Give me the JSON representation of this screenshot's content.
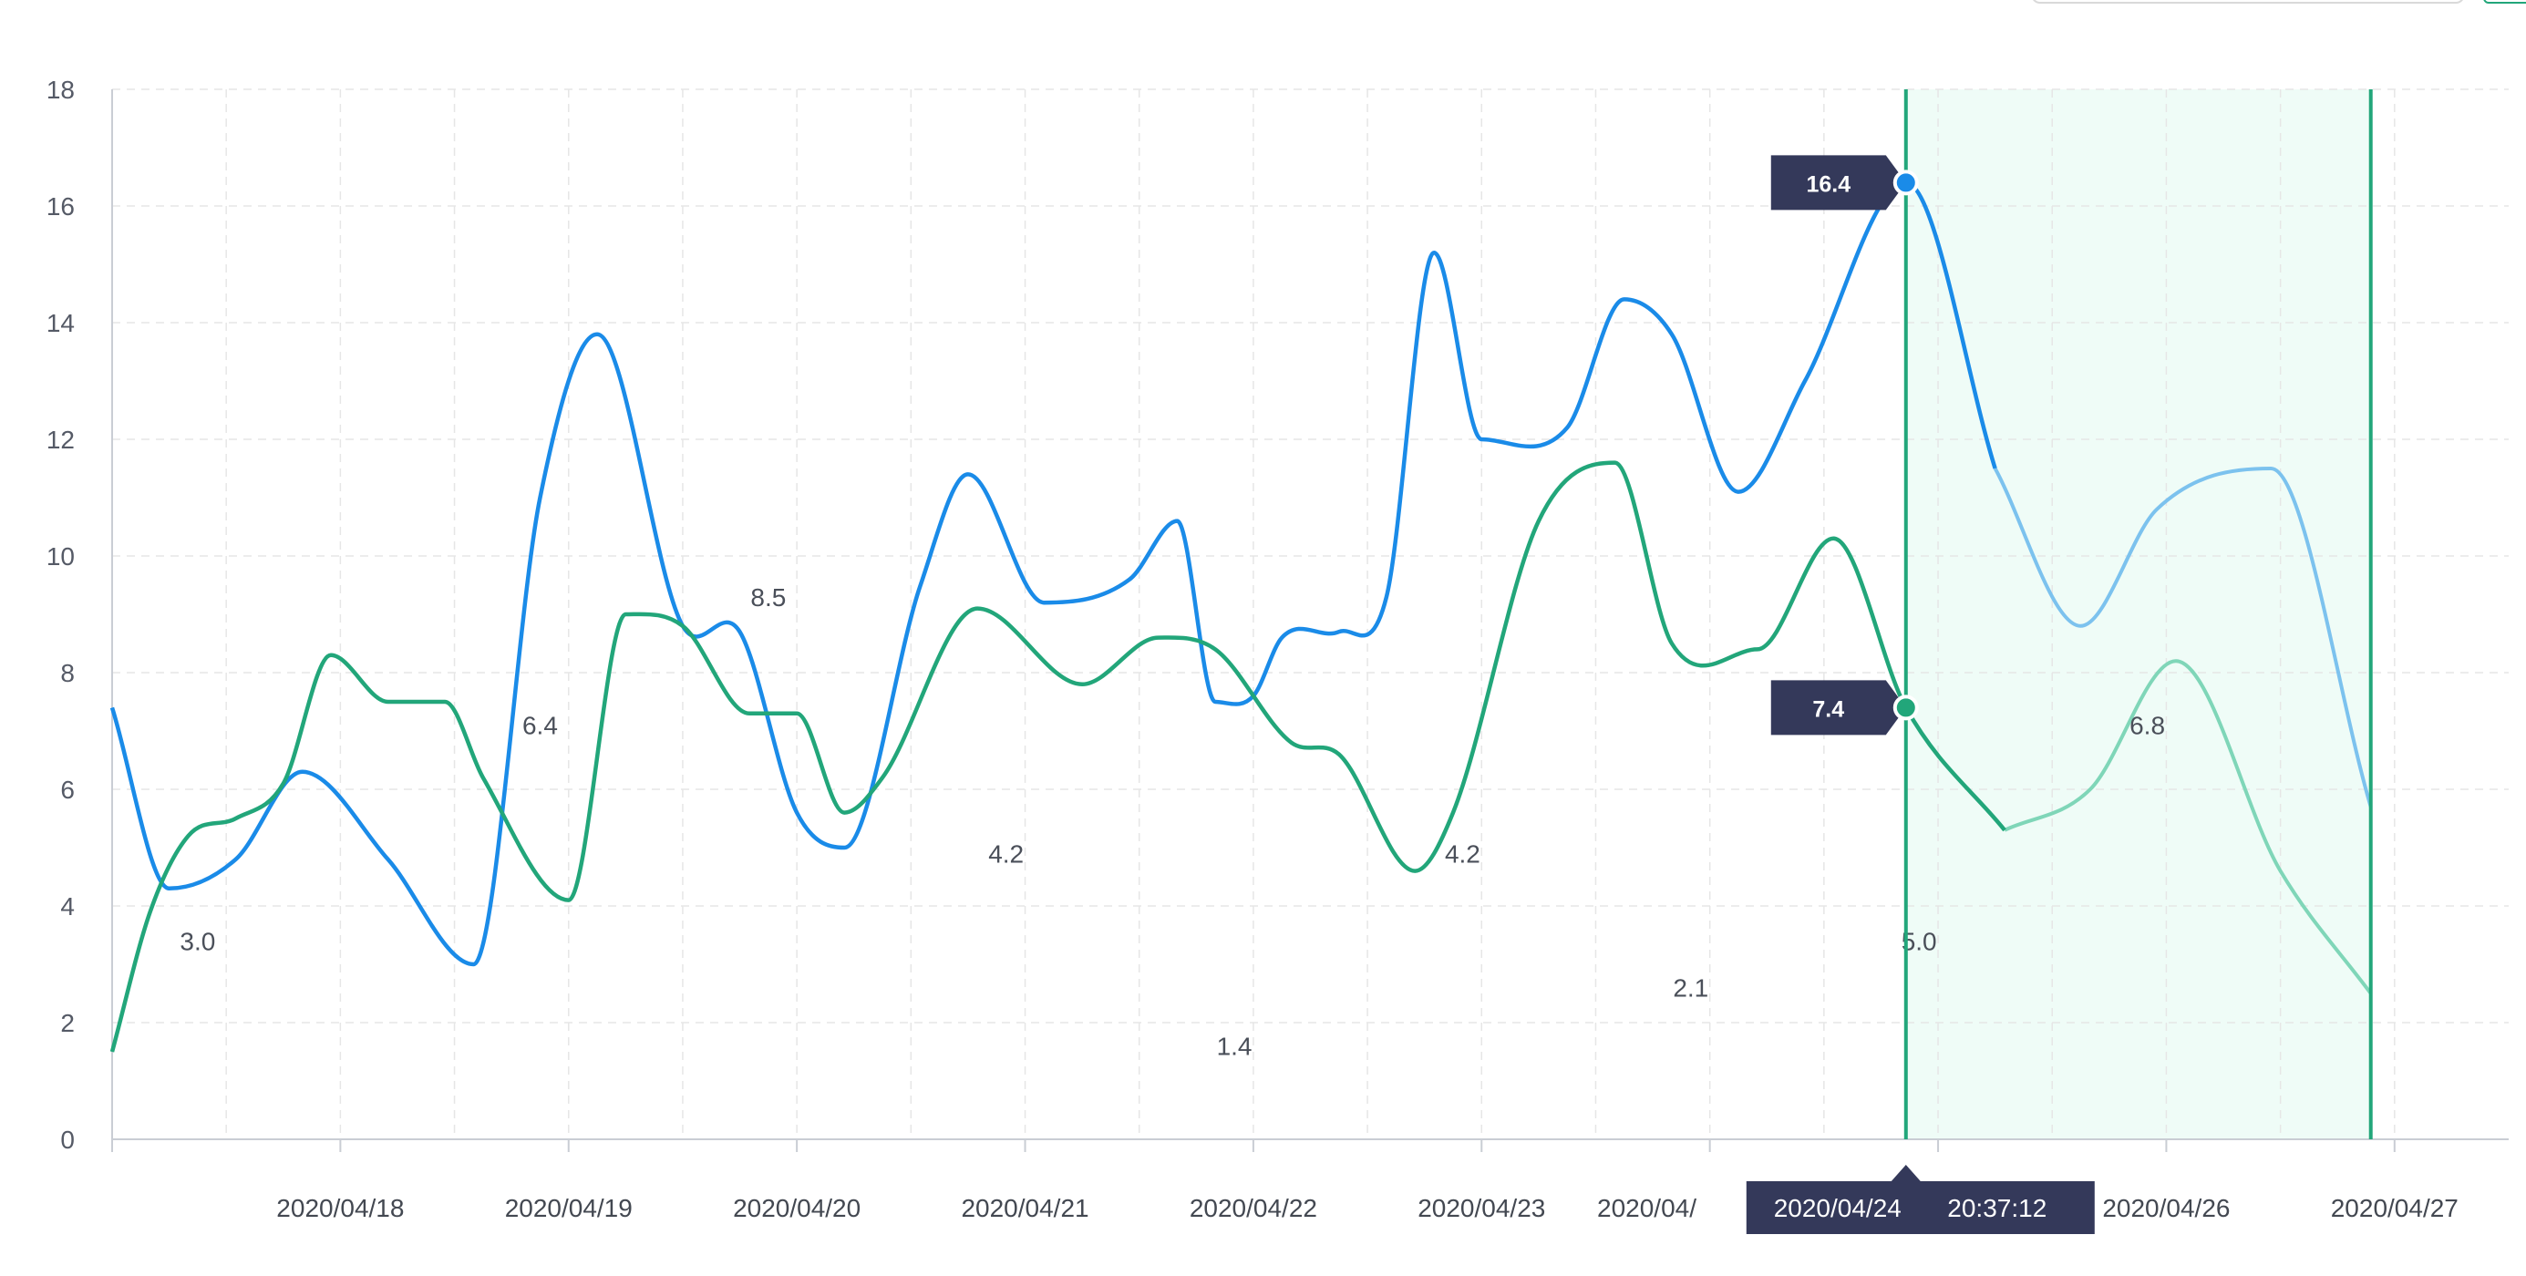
{
  "colors": {
    "series_a": "#1a8be8",
    "series_a_future": "#7cc2ee",
    "series_b": "#22a67a",
    "series_b_future": "#7fd6b8",
    "tooltip_bg": "#34395a",
    "grid": "#e6e6e6",
    "axis": "#c9cdd4",
    "selection_fill": "#effcf7"
  },
  "crosshair": {
    "date_label": "2020/04/24",
    "time_label": "20:37:12",
    "x": "2020/04/24 20:37:12",
    "series_a_value": "16.4",
    "series_b_value": "7.4"
  },
  "chart_data": {
    "type": "line",
    "xlabel": "",
    "ylabel": "",
    "ylim": [
      0,
      18
    ],
    "y_ticks": [
      "0",
      "2",
      "4",
      "6",
      "8",
      "10",
      "12",
      "14",
      "16",
      "18"
    ],
    "x_range": [
      "2020/04/17 00:00",
      "2020/04/27 12:00"
    ],
    "x_ticks": [
      "2020/04/18",
      "2020/04/19",
      "2020/04/20",
      "2020/04/21",
      "2020/04/22",
      "2020/04/23",
      "2020/04/24",
      "2020/04/25",
      "2020/04/26",
      "2020/04/27"
    ],
    "x_tick_labels": [
      "2020/04/18",
      "2020/04/19",
      "2020/04/20",
      "2020/04/21",
      "2020/04/22",
      "2020/04/23",
      "2020/04/",
      "",
      "2020/04/26",
      "2020/04/27"
    ],
    "grid": true,
    "legend": "none",
    "selection": {
      "from": "2020/04/24 20:37:12",
      "to": "2020/04/26 21:30"
    },
    "series": [
      {
        "x": [
          "2020/04/17 00:00",
          "2020/04/17 06:00",
          "2020/04/17 13:00",
          "2020/04/17 20:00",
          "2020/04/18 05:00",
          "2020/04/18 14:00",
          "2020/04/18 21:00",
          "2020/04/19 03:00",
          "2020/04/19 12:00",
          "2020/04/19 18:00",
          "2020/04/20 00:00",
          "2020/04/20 05:00",
          "2020/04/20 13:00",
          "2020/04/20 18:00",
          "2020/04/21 02:00",
          "2020/04/21 11:00",
          "2020/04/21 16:00",
          "2020/04/21 20:00",
          "2020/04/22 00:00",
          "2020/04/22 03:00",
          "2020/04/22 09:00",
          "2020/04/22 14:00",
          "2020/04/22 19:00",
          "2020/04/23 00:00",
          "2020/04/23 09:00",
          "2020/04/23 15:00",
          "2020/04/23 20:00",
          "2020/04/24 03:00",
          "2020/04/24 10:00",
          "2020/04/24 20:37",
          "2020/04/25 06:00",
          "2020/04/25 15:00",
          "2020/04/25 23:00",
          "2020/04/26 11:00",
          "2020/04/26 21:30"
        ],
        "y": [
          7.4,
          4.3,
          4.8,
          6.3,
          4.8,
          3.0,
          11.0,
          13.8,
          8.8,
          8.7,
          5.6,
          5.0,
          9.5,
          11.4,
          9.2,
          9.6,
          10.6,
          7.5,
          7.6,
          8.6,
          8.7,
          9.3,
          15.2,
          12.0,
          12.2,
          14.4,
          13.8,
          11.1,
          13.0,
          16.4,
          11.5,
          8.8,
          10.8,
          11.5,
          5.7
        ],
        "y_min": 2.9
      },
      {
        "x": [
          "2020/04/17 00:00",
          "2020/04/17 04:00",
          "2020/04/17 08:00",
          "2020/04/17 13:00",
          "2020/04/17 18:00",
          "2020/04/17 23:00",
          "2020/04/18 05:00",
          "2020/04/18 11:00",
          "2020/04/18 15:00",
          "2020/04/19 00:00",
          "2020/04/19 06:00",
          "2020/04/19 12:00",
          "2020/04/19 19:00",
          "2020/04/20 00:00",
          "2020/04/20 05:00",
          "2020/04/20 09:00",
          "2020/04/20 19:00",
          "2020/04/21 06:00",
          "2020/04/21 14:00",
          "2020/04/21 20:00",
          "2020/04/22 04:00",
          "2020/04/22 09:00",
          "2020/04/22 17:00",
          "2020/04/22 21:00",
          "2020/04/23 06:00",
          "2020/04/23 14:00",
          "2020/04/23 20:00",
          "2020/04/24 05:00",
          "2020/04/24 13:00",
          "2020/04/24 20:37",
          "2020/04/25 07:00",
          "2020/04/25 16:00",
          "2020/04/26 01:00",
          "2020/04/26 12:00",
          "2020/04/26 21:30"
        ],
        "y": [
          1.5,
          3.9,
          5.2,
          5.5,
          6.1,
          8.3,
          7.5,
          7.5,
          6.2,
          4.1,
          9.0,
          8.8,
          7.3,
          7.3,
          5.6,
          6.2,
          9.1,
          7.8,
          8.6,
          8.4,
          6.8,
          6.6,
          4.6,
          5.6,
          10.6,
          11.6,
          8.5,
          8.4,
          10.3,
          7.4,
          5.3,
          6.0,
          8.2,
          4.6,
          2.5
        ]
      }
    ],
    "data_labels": [
      {
        "text": "3.0",
        "x": "2020/04/17 09:00",
        "y": 3.4
      },
      {
        "text": "6.4",
        "x": "2020/04/18 21:00",
        "y": 7.1
      },
      {
        "text": "8.5",
        "x": "2020/04/19 21:00",
        "y": 9.3
      },
      {
        "text": "4.2",
        "x": "2020/04/20 22:00",
        "y": 4.9
      },
      {
        "text": "1.4",
        "x": "2020/04/21 22:00",
        "y": 1.6
      },
      {
        "text": "4.2",
        "x": "2020/04/22 22:00",
        "y": 4.9
      },
      {
        "text": "2.1",
        "x": "2020/04/23 22:00",
        "y": 2.6
      },
      {
        "text": "5.0",
        "x": "2020/04/24 22:00",
        "y": 3.4
      },
      {
        "text": "6.8",
        "x": "2020/04/25 22:00",
        "y": 7.1
      }
    ]
  }
}
